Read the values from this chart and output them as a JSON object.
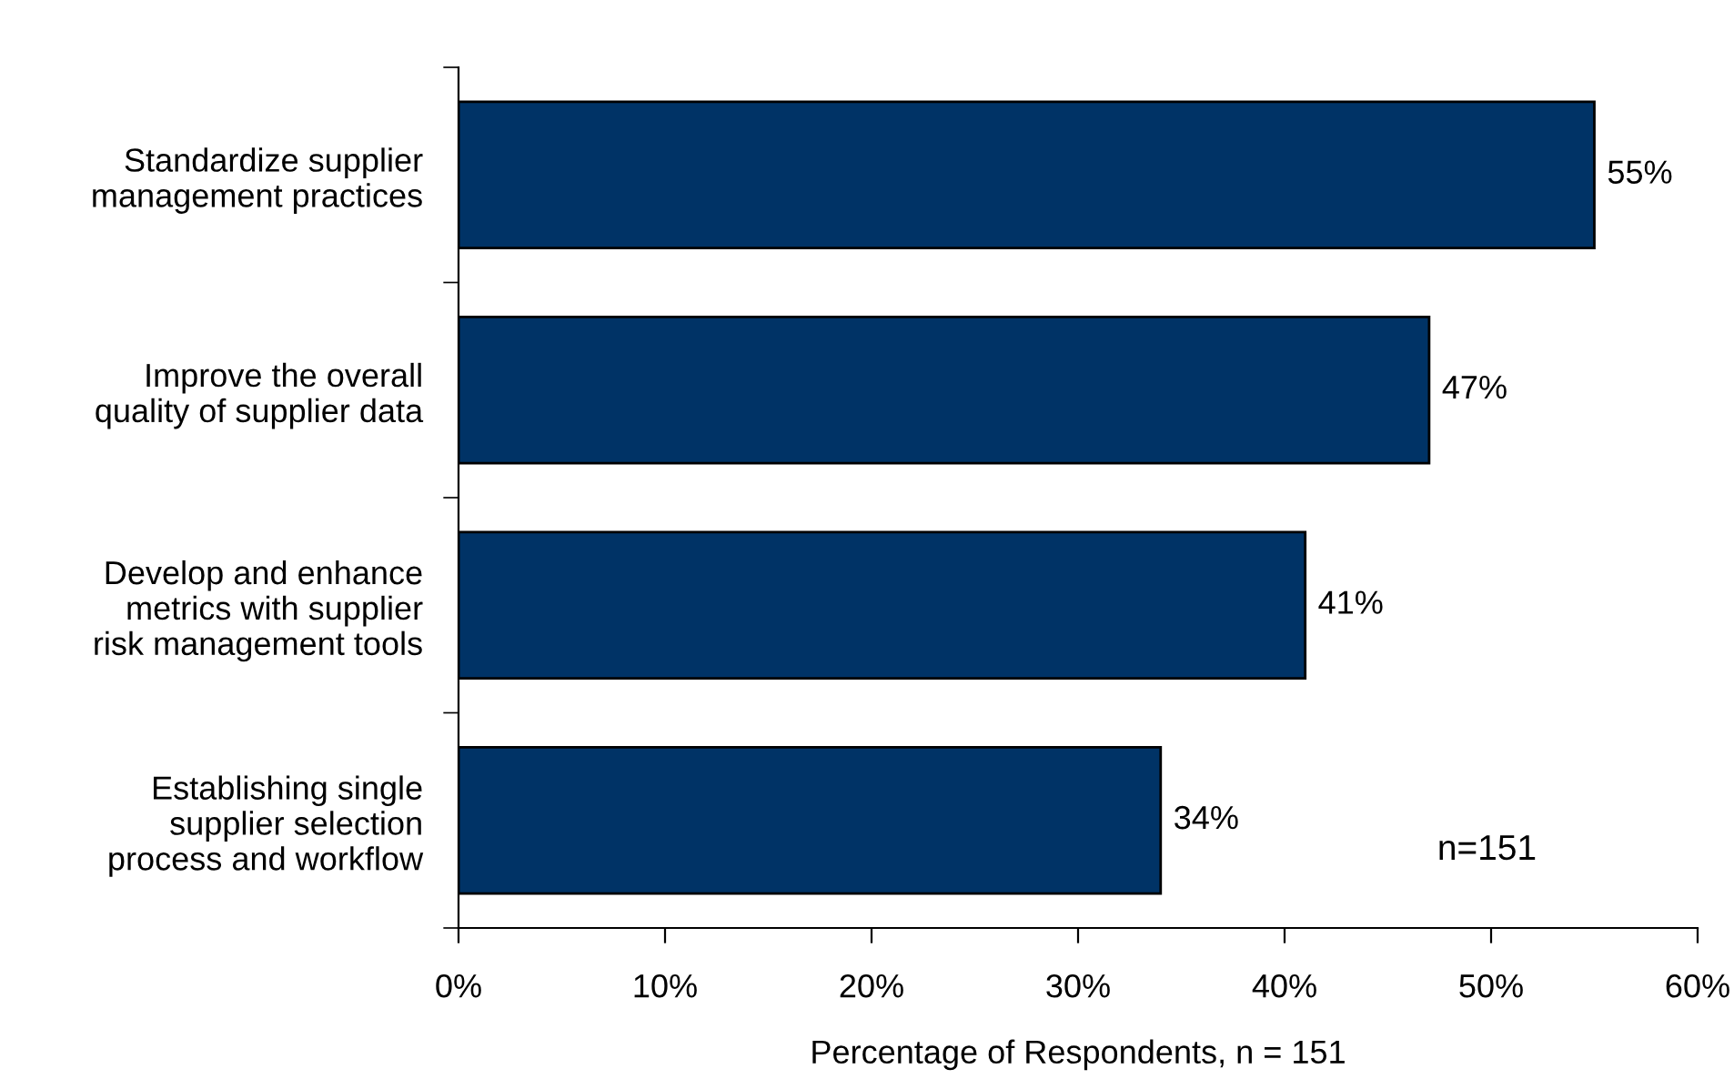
{
  "chart_data": {
    "type": "bar",
    "orientation": "horizontal",
    "categories": [
      "Standardize supplier\nmanagement practices",
      "Improve the overall\nquality of supplier data",
      "Develop and enhance\nmetrics with supplier\nrisk management tools",
      "Establishing single\nsupplier selection\nprocess and workflow"
    ],
    "values": [
      55,
      47,
      41,
      34
    ],
    "value_labels": [
      "55%",
      "47%",
      "41%",
      "34%"
    ],
    "color": "#003366",
    "xlim": [
      0,
      60
    ],
    "xticks": [
      {
        "value": 0,
        "label": "0%"
      },
      {
        "value": 10,
        "label": "10%"
      },
      {
        "value": 20,
        "label": "20%"
      },
      {
        "value": 30,
        "label": "30%"
      },
      {
        "value": 40,
        "label": "40%"
      },
      {
        "value": 50,
        "label": "50%"
      },
      {
        "value": 60,
        "label": "60%"
      }
    ],
    "xlabel": "Percentage of Respondents, n = 151",
    "annotations": [
      "n=151"
    ],
    "grid": false,
    "legend": false
  }
}
